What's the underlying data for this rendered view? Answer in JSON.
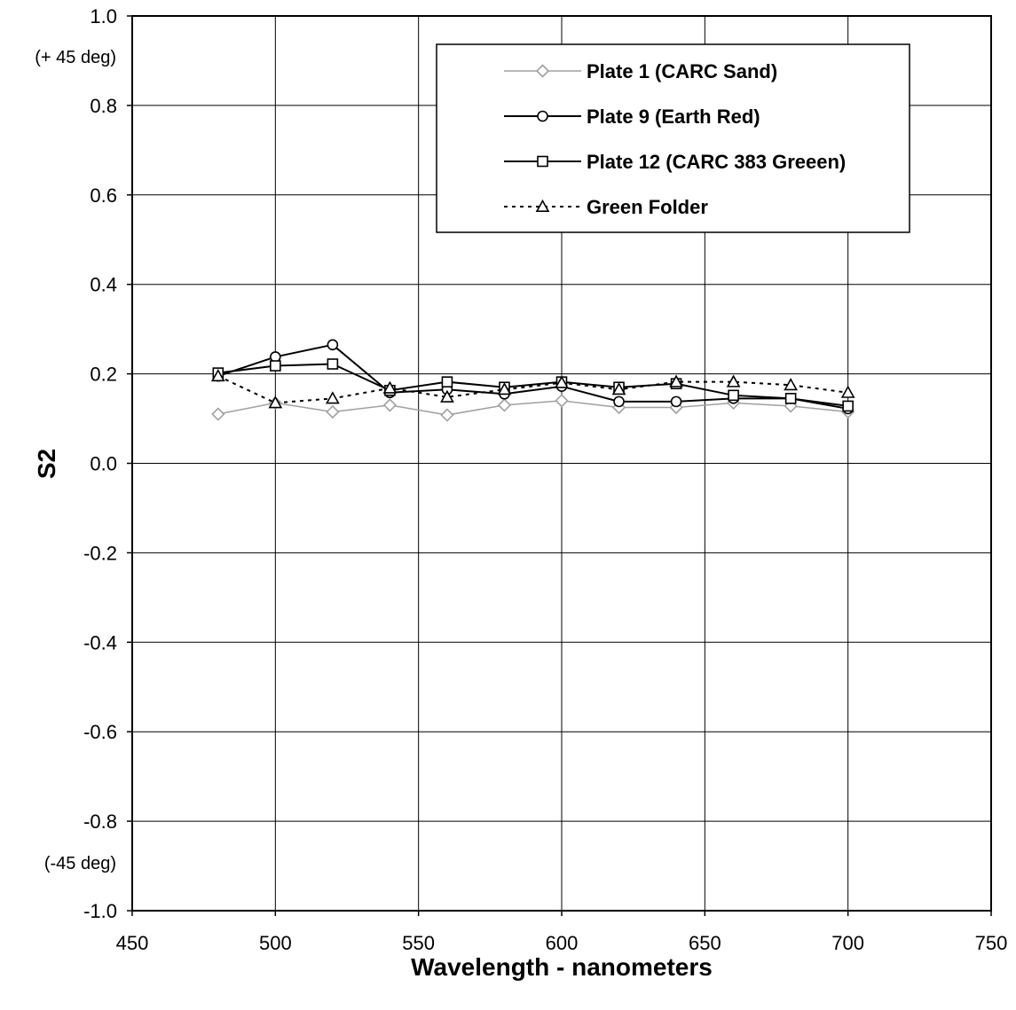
{
  "chart_data": {
    "type": "line",
    "title": "",
    "xlabel": "Wavelength - nanometers",
    "ylabel": "S2",
    "xlim": [
      450,
      750
    ],
    "ylim": [
      -1.0,
      1.0
    ],
    "x_ticks": [
      "450",
      "500",
      "550",
      "600",
      "650",
      "700",
      "750"
    ],
    "y_ticks": [
      "1.0",
      "0.8",
      "0.6",
      "0.4",
      "0.2",
      "0.0",
      "-0.2",
      "-0.4",
      "-0.6",
      "-0.8",
      "-1.0"
    ],
    "annotations": [
      "(+ 45 deg)",
      "(-45 deg)"
    ],
    "grid": true,
    "legend_position": "top-right",
    "x": [
      480,
      500,
      520,
      540,
      560,
      580,
      600,
      620,
      640,
      660,
      680,
      700
    ],
    "series": [
      {
        "name": "Plate 1 (CARC Sand)",
        "color": "#a0a0a0",
        "marker": "diamond",
        "dash": "solid",
        "values": [
          0.11,
          0.135,
          0.115,
          0.13,
          0.108,
          0.13,
          0.14,
          0.125,
          0.125,
          0.135,
          0.128,
          0.115
        ]
      },
      {
        "name": "Plate 9 (Earth Red)",
        "color": "#000000",
        "marker": "circle",
        "dash": "solid",
        "values": [
          0.195,
          0.238,
          0.265,
          0.158,
          0.165,
          0.155,
          0.172,
          0.138,
          0.138,
          0.145,
          0.145,
          0.122
        ]
      },
      {
        "name": "Plate 12 (CARC 383 Greeen)",
        "color": "#000000",
        "marker": "square",
        "dash": "solid",
        "values": [
          0.202,
          0.218,
          0.222,
          0.163,
          0.182,
          0.17,
          0.182,
          0.17,
          0.178,
          0.152,
          0.145,
          0.128
        ]
      },
      {
        "name": "Green Folder",
        "color": "#000000",
        "marker": "triangle",
        "dash": "dotted",
        "values": [
          0.195,
          0.135,
          0.145,
          0.168,
          0.148,
          0.165,
          0.18,
          0.165,
          0.182,
          0.182,
          0.175,
          0.158
        ]
      }
    ]
  }
}
